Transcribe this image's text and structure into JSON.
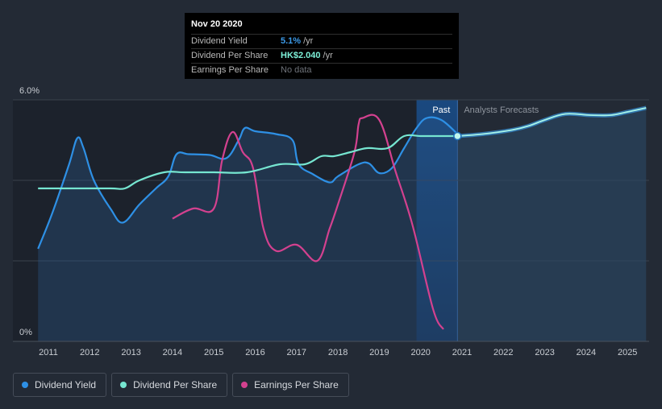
{
  "tooltip": {
    "date": "Nov 20 2020",
    "rows": [
      {
        "label": "Dividend Yield",
        "value": "5.1%",
        "unit": "/yr",
        "color": "#3d9be9"
      },
      {
        "label": "Dividend Per Share",
        "value": "HK$2.040",
        "unit": "/yr",
        "color": "#7ef2da"
      },
      {
        "label": "Earnings Per Share",
        "value": "No data",
        "unit": "",
        "color": ""
      }
    ]
  },
  "past_label": "Past",
  "forecast_label": "Analysts Forecasts",
  "legend": [
    {
      "label": "Dividend Yield",
      "color": "#2e90e5"
    },
    {
      "label": "Dividend Per Share",
      "color": "#76e6d1"
    },
    {
      "label": "Earnings Per Share",
      "color": "#d3418f"
    }
  ],
  "chart_data": {
    "type": "line",
    "y_axis": {
      "ticks": [
        "0%",
        "6.0%"
      ],
      "range": [
        0,
        6.0
      ],
      "unit": "%"
    },
    "x_axis": {
      "ticks": [
        "2011",
        "2012",
        "2013",
        "2014",
        "2015",
        "2016",
        "2017",
        "2018",
        "2019",
        "2020",
        "2021",
        "2022",
        "2023",
        "2024",
        "2025"
      ],
      "range": [
        2010.75,
        2025.45
      ]
    },
    "past_end": 2020.89,
    "forecast_region_start": 2019.9,
    "series": [
      {
        "name": "Dividend Yield",
        "color": "#2e90e5",
        "points": [
          [
            2010.75,
            2.3
          ],
          [
            2011.1,
            3.2
          ],
          [
            2011.5,
            4.4
          ],
          [
            2011.7,
            5.05
          ],
          [
            2011.85,
            4.8
          ],
          [
            2012.1,
            4.0
          ],
          [
            2012.5,
            3.3
          ],
          [
            2012.8,
            2.95
          ],
          [
            2013.2,
            3.4
          ],
          [
            2013.6,
            3.8
          ],
          [
            2013.9,
            4.1
          ],
          [
            2014.1,
            4.65
          ],
          [
            2014.4,
            4.65
          ],
          [
            2014.9,
            4.63
          ],
          [
            2015.3,
            4.55
          ],
          [
            2015.6,
            5.0
          ],
          [
            2015.75,
            5.3
          ],
          [
            2016.0,
            5.22
          ],
          [
            2016.5,
            5.15
          ],
          [
            2016.9,
            5.0
          ],
          [
            2017.05,
            4.4
          ],
          [
            2017.4,
            4.15
          ],
          [
            2017.8,
            3.95
          ],
          [
            2018.0,
            4.1
          ],
          [
            2018.5,
            4.4
          ],
          [
            2018.75,
            4.42
          ],
          [
            2019.0,
            4.18
          ],
          [
            2019.3,
            4.3
          ],
          [
            2019.6,
            4.8
          ],
          [
            2019.9,
            5.3
          ],
          [
            2020.15,
            5.55
          ],
          [
            2020.5,
            5.5
          ],
          [
            2020.89,
            5.15
          ]
        ]
      },
      {
        "name": "Dividend Per Share",
        "color": "#76e6d1",
        "points": [
          [
            2010.75,
            3.8
          ],
          [
            2011.5,
            3.8
          ],
          [
            2012.5,
            3.8
          ],
          [
            2012.85,
            3.8
          ],
          [
            2013.2,
            4.0
          ],
          [
            2013.8,
            4.2
          ],
          [
            2014.3,
            4.2
          ],
          [
            2015.0,
            4.2
          ],
          [
            2015.8,
            4.2
          ],
          [
            2016.6,
            4.4
          ],
          [
            2017.2,
            4.4
          ],
          [
            2017.6,
            4.6
          ],
          [
            2017.9,
            4.6
          ],
          [
            2018.3,
            4.7
          ],
          [
            2018.7,
            4.8
          ],
          [
            2019.2,
            4.8
          ],
          [
            2019.6,
            5.1
          ],
          [
            2020.0,
            5.1
          ],
          [
            2020.5,
            5.1
          ],
          [
            2020.89,
            5.1
          ],
          [
            2021.5,
            5.15
          ],
          [
            2022.2,
            5.25
          ],
          [
            2022.6,
            5.35
          ],
          [
            2023.0,
            5.5
          ],
          [
            2023.5,
            5.65
          ],
          [
            2024.1,
            5.62
          ],
          [
            2024.6,
            5.62
          ],
          [
            2025.0,
            5.7
          ],
          [
            2025.45,
            5.8
          ]
        ]
      },
      {
        "name": "Earnings Per Share",
        "color": "#d3418f",
        "points": [
          [
            2014.0,
            3.05
          ],
          [
            2014.5,
            3.3
          ],
          [
            2015.0,
            3.3
          ],
          [
            2015.2,
            4.5
          ],
          [
            2015.45,
            5.2
          ],
          [
            2015.7,
            4.7
          ],
          [
            2015.95,
            4.3
          ],
          [
            2016.2,
            2.8
          ],
          [
            2016.5,
            2.25
          ],
          [
            2017.0,
            2.4
          ],
          [
            2017.5,
            2.0
          ],
          [
            2017.8,
            2.8
          ],
          [
            2018.0,
            3.4
          ],
          [
            2018.4,
            4.7
          ],
          [
            2018.5,
            5.4
          ],
          [
            2018.6,
            5.55
          ],
          [
            2019.0,
            5.5
          ],
          [
            2019.4,
            4.2
          ],
          [
            2019.8,
            2.9
          ],
          [
            2020.3,
            0.8
          ],
          [
            2020.55,
            0.3
          ]
        ]
      }
    ]
  }
}
